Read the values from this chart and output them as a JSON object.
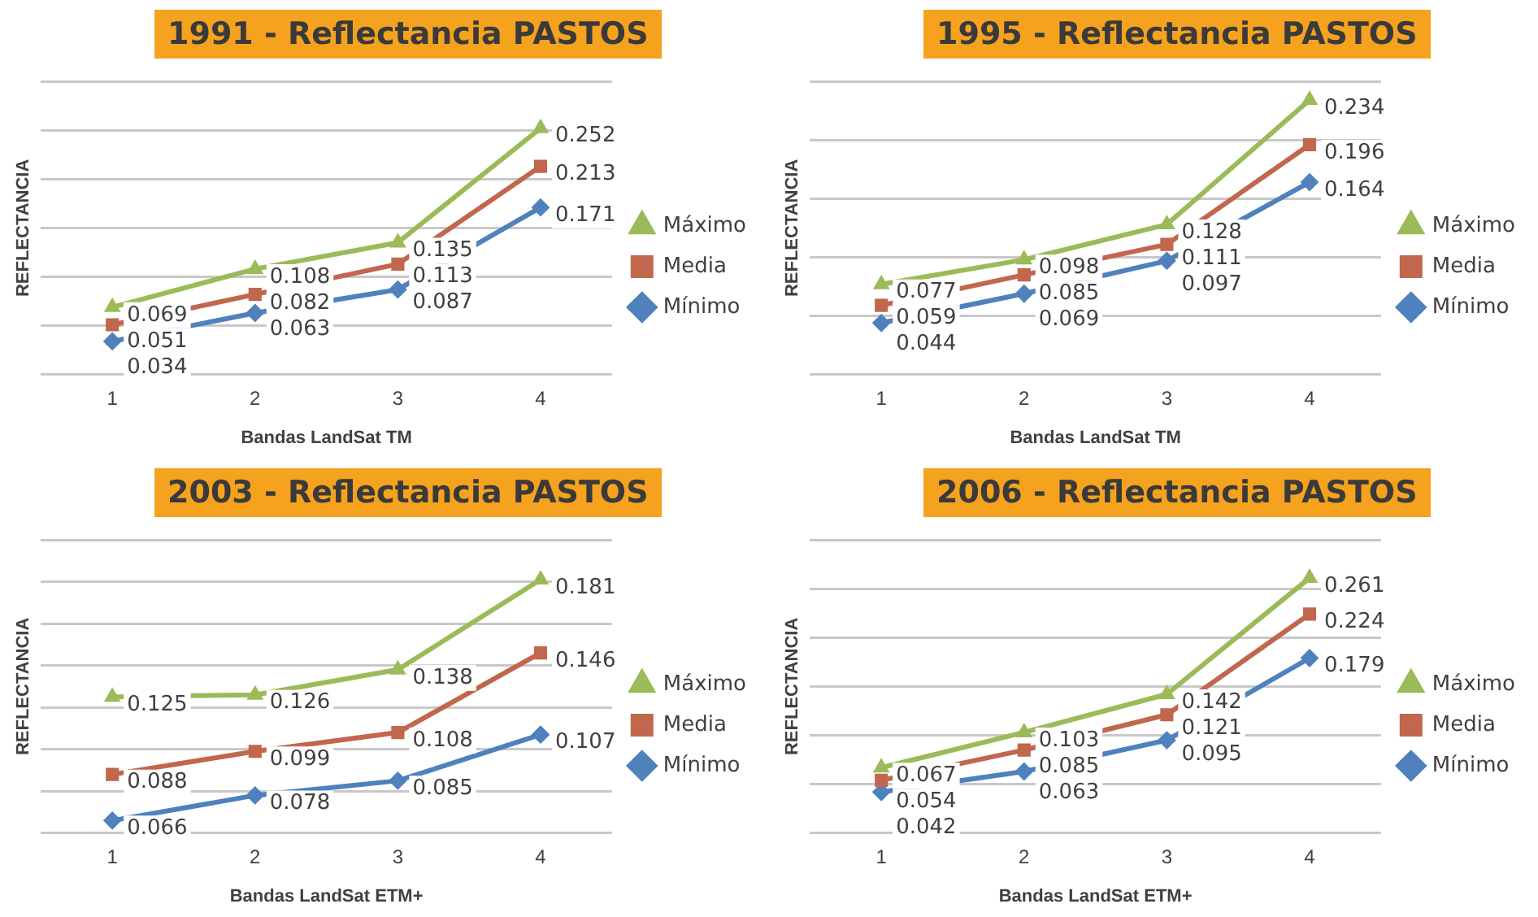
{
  "chart_data": [
    {
      "type": "line",
      "title": "1991 - Reflectancia PASTOS",
      "xlabel": "Bandas LandSat TM",
      "ylabel": "REFLECTANCIA",
      "categories": [
        "1",
        "2",
        "3",
        "4"
      ],
      "grid": "y",
      "legend": "right",
      "data_labels": true,
      "series": [
        {
          "name": "Máximo",
          "color": "#9bbb59",
          "marker": "triangle",
          "values": [
            0.069,
            0.108,
            0.135,
            0.252
          ]
        },
        {
          "name": "Media",
          "color": "#c0674d",
          "marker": "square",
          "values": [
            0.051,
            0.082,
            0.113,
            0.213
          ]
        },
        {
          "name": "Mínimo",
          "color": "#4f81bd",
          "marker": "diamond",
          "values": [
            0.034,
            0.063,
            0.087,
            0.171
          ]
        }
      ]
    },
    {
      "type": "line",
      "title": "1995 - Reflectancia PASTOS",
      "xlabel": "Bandas LandSat TM",
      "ylabel": "REFLECTANCIA",
      "categories": [
        "1",
        "2",
        "3",
        "4"
      ],
      "grid": "y",
      "legend": "right",
      "data_labels": true,
      "series": [
        {
          "name": "Máximo",
          "color": "#9bbb59",
          "marker": "triangle",
          "values": [
            0.077,
            0.098,
            0.128,
            0.234
          ]
        },
        {
          "name": "Media",
          "color": "#c0674d",
          "marker": "square",
          "values": [
            0.059,
            0.085,
            0.111,
            0.196
          ]
        },
        {
          "name": "Mínimo",
          "color": "#4f81bd",
          "marker": "diamond",
          "values": [
            0.044,
            0.069,
            0.097,
            0.164
          ]
        }
      ]
    },
    {
      "type": "line",
      "title": "2003 - Reflectancia PASTOS",
      "xlabel": "Bandas LandSat ETM+",
      "ylabel": "REFLECTANCIA",
      "categories": [
        "1",
        "2",
        "3",
        "4"
      ],
      "grid": "y",
      "legend": "right",
      "data_labels": true,
      "series": [
        {
          "name": "Máximo",
          "color": "#9bbb59",
          "marker": "triangle",
          "values": [
            0.125,
            0.126,
            0.138,
            0.181
          ]
        },
        {
          "name": "Media",
          "color": "#c0674d",
          "marker": "square",
          "values": [
            0.088,
            0.099,
            0.108,
            0.146
          ]
        },
        {
          "name": "Mínimo",
          "color": "#4f81bd",
          "marker": "diamond",
          "values": [
            0.066,
            0.078,
            0.085,
            0.107
          ]
        }
      ]
    },
    {
      "type": "line",
      "title": "2006 - Reflectancia PASTOS",
      "xlabel": "Bandas LandSat ETM+",
      "ylabel": "REFLECTANCIA",
      "categories": [
        "1",
        "2",
        "3",
        "4"
      ],
      "grid": "y",
      "legend": "right",
      "data_labels": true,
      "series": [
        {
          "name": "Máximo",
          "color": "#9bbb59",
          "marker": "triangle",
          "values": [
            0.067,
            0.103,
            0.142,
            0.261
          ]
        },
        {
          "name": "Media",
          "color": "#c0674d",
          "marker": "square",
          "values": [
            0.054,
            0.085,
            0.121,
            0.224
          ]
        },
        {
          "name": "Mínimo",
          "color": "#4f81bd",
          "marker": "diamond",
          "values": [
            0.042,
            0.063,
            0.095,
            0.179
          ]
        }
      ]
    }
  ]
}
